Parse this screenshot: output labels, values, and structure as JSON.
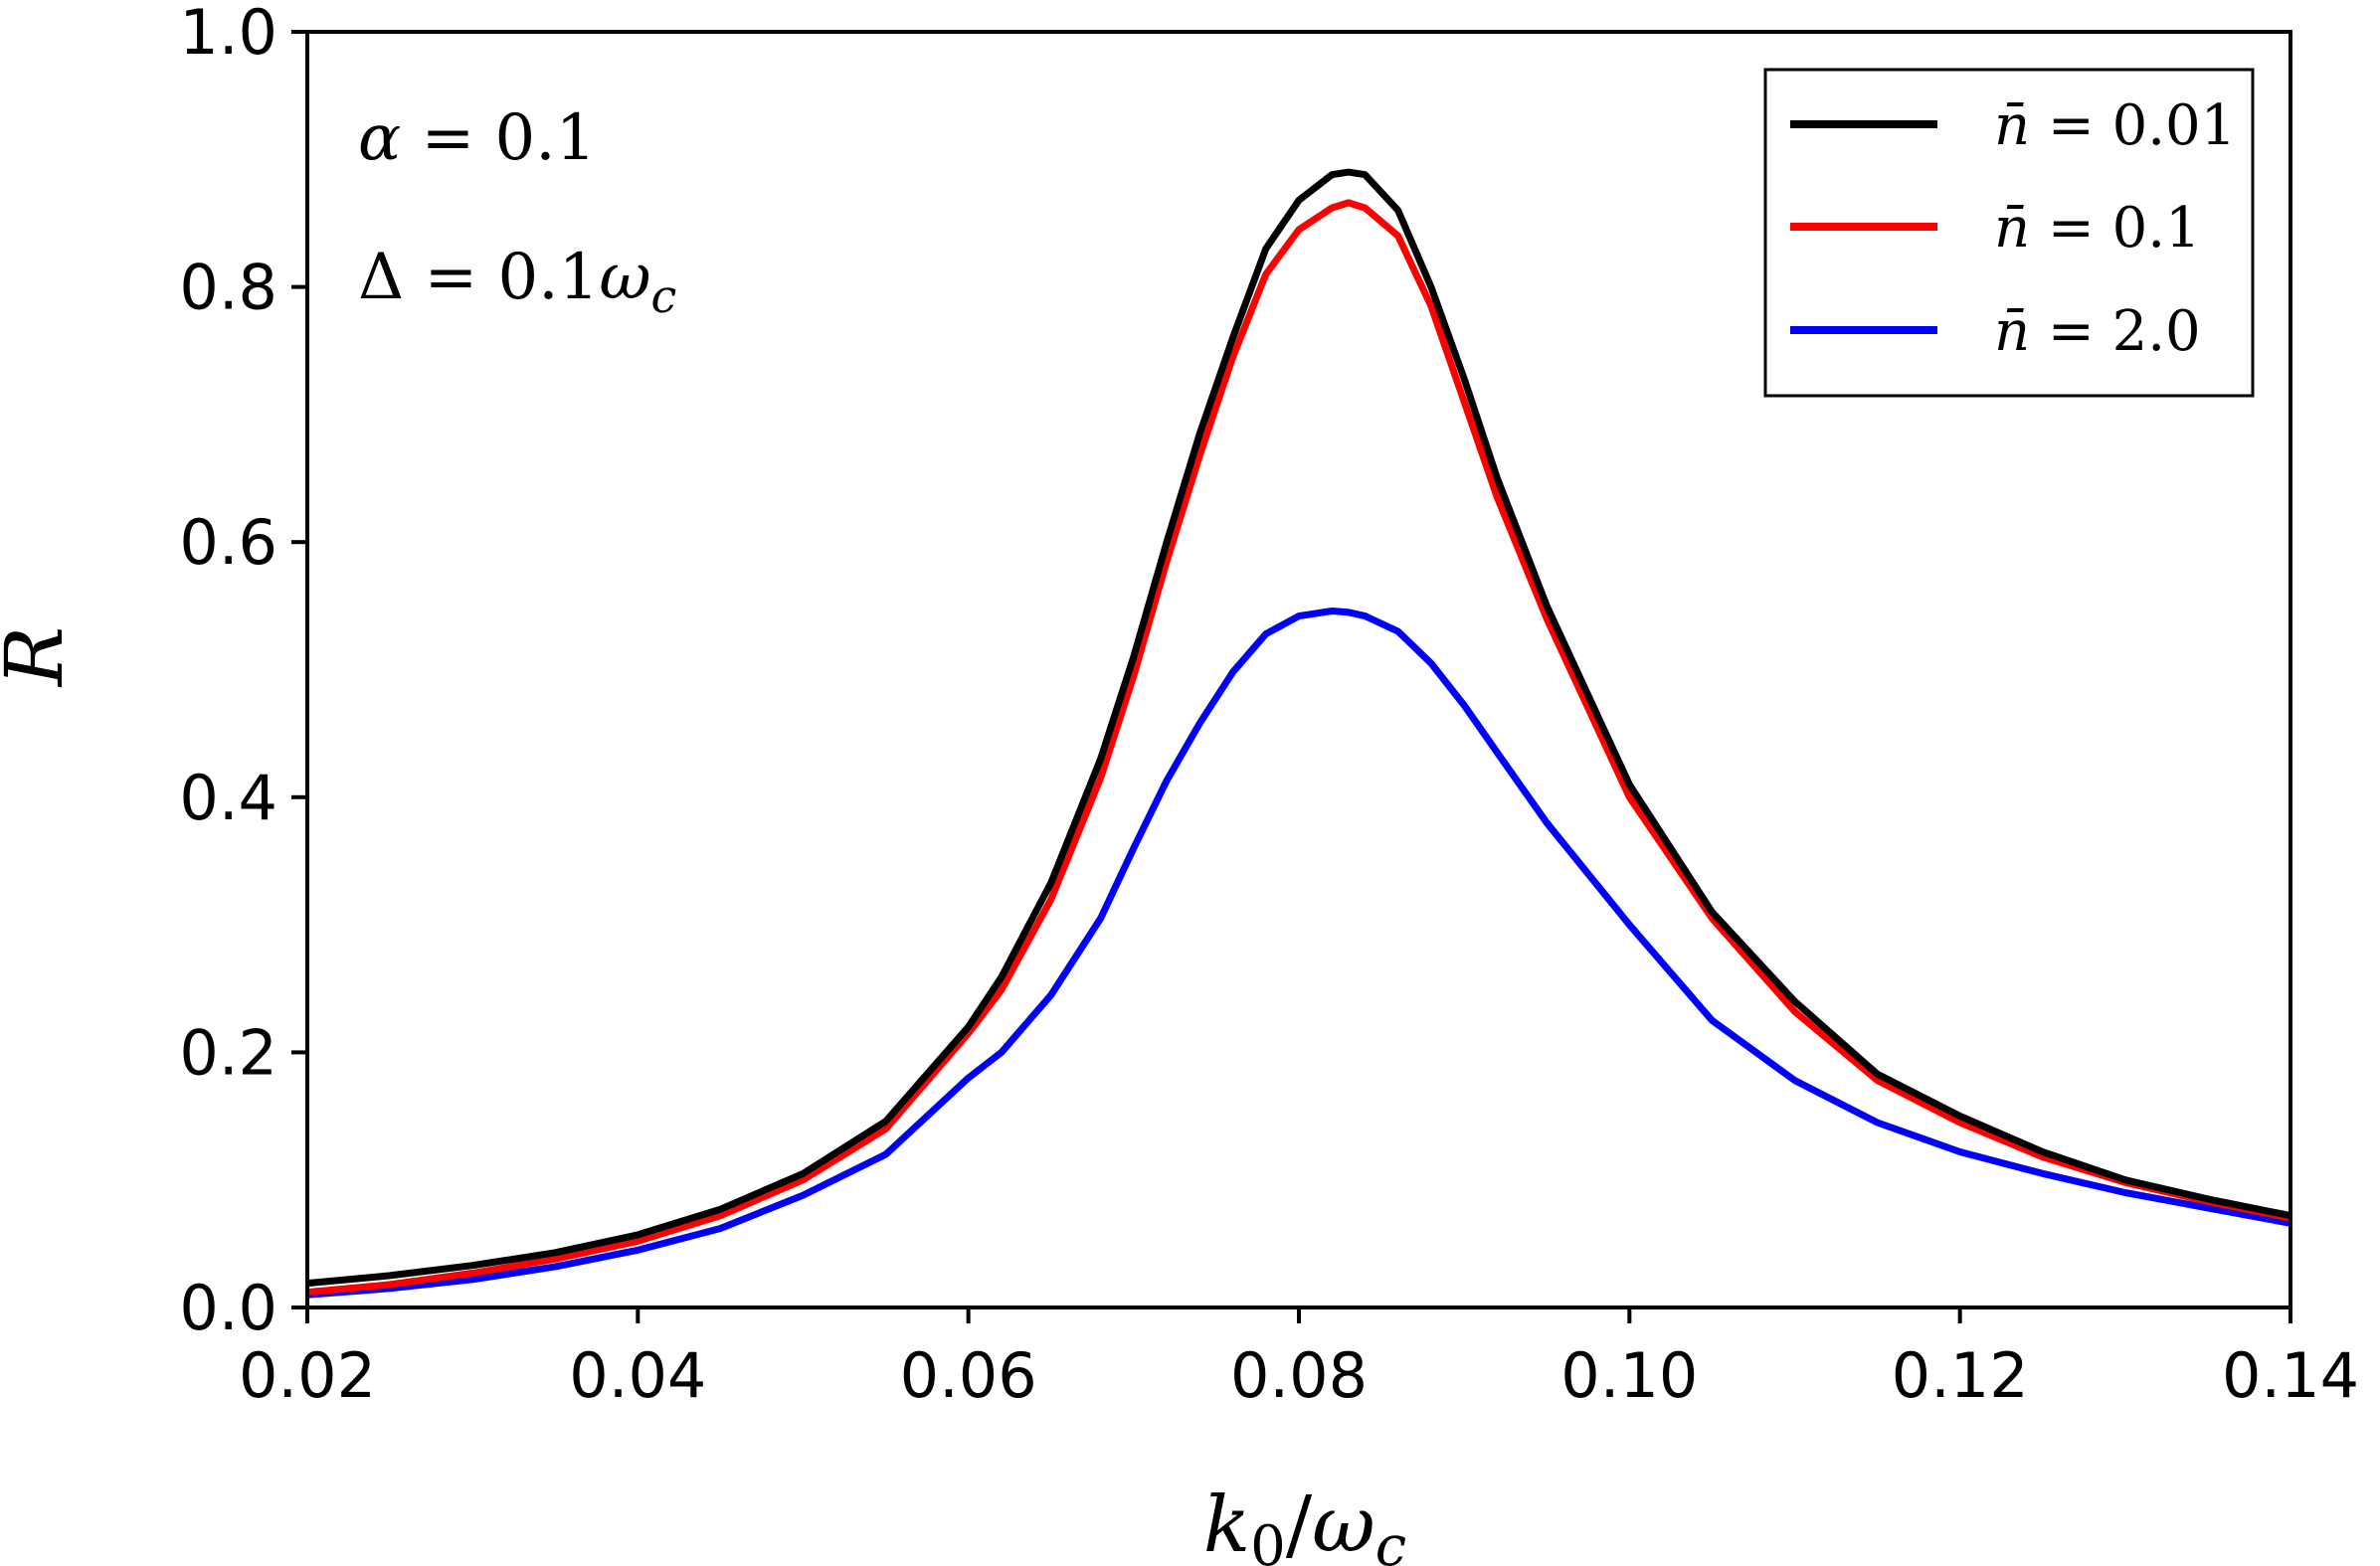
{
  "chart_data": {
    "type": "line",
    "title": "",
    "xlabel": "k0/ωc",
    "ylabel": "R",
    "xlim": [
      0.02,
      0.14
    ],
    "ylim": [
      0.0,
      1.0
    ],
    "xticks": [
      0.02,
      0.04,
      0.06,
      0.08,
      0.1,
      0.12,
      0.14
    ],
    "xtick_labels": [
      "0.02",
      "0.04",
      "0.06",
      "0.08",
      "0.10",
      "0.12",
      "0.14"
    ],
    "yticks": [
      0.0,
      0.2,
      0.4,
      0.6,
      0.8,
      1.0
    ],
    "ytick_labels": [
      "0.0",
      "0.2",
      "0.4",
      "0.6",
      "0.8",
      "1.0"
    ],
    "grid": false,
    "legend_position": "top-right",
    "annotations": [
      "α = 0.1",
      "Δ = 0.1ωc"
    ],
    "x": [
      0.02,
      0.025,
      0.03,
      0.035,
      0.04,
      0.045,
      0.05,
      0.055,
      0.06,
      0.062,
      0.065,
      0.068,
      0.07,
      0.072,
      0.074,
      0.076,
      0.078,
      0.08,
      0.082,
      0.083,
      0.084,
      0.086,
      0.088,
      0.09,
      0.092,
      0.095,
      0.1,
      0.105,
      0.11,
      0.115,
      0.12,
      0.125,
      0.13,
      0.135,
      0.14
    ],
    "series": [
      {
        "name": "n̄ = 0.01",
        "color": "#000000",
        "values": [
          0.019,
          0.025,
          0.033,
          0.043,
          0.057,
          0.077,
          0.105,
          0.146,
          0.22,
          0.259,
          0.333,
          0.43,
          0.51,
          0.6,
          0.685,
          0.76,
          0.83,
          0.868,
          0.888,
          0.89,
          0.888,
          0.86,
          0.8,
          0.728,
          0.65,
          0.55,
          0.41,
          0.31,
          0.24,
          0.183,
          0.15,
          0.122,
          0.1,
          0.085,
          0.072
        ]
      },
      {
        "name": "n̄ = 0.1",
        "color": "#ff0000",
        "values": [
          0.012,
          0.018,
          0.027,
          0.038,
          0.052,
          0.072,
          0.1,
          0.14,
          0.215,
          0.249,
          0.32,
          0.415,
          0.495,
          0.585,
          0.668,
          0.745,
          0.81,
          0.845,
          0.862,
          0.866,
          0.862,
          0.84,
          0.785,
          0.71,
          0.635,
          0.54,
          0.4,
          0.305,
          0.232,
          0.178,
          0.145,
          0.118,
          0.098,
          0.083,
          0.07
        ]
      },
      {
        "name": "n̄ = 2.0",
        "color": "#0000ff",
        "values": [
          0.01,
          0.015,
          0.022,
          0.032,
          0.045,
          0.062,
          0.088,
          0.12,
          0.18,
          0.2,
          0.245,
          0.305,
          0.36,
          0.413,
          0.458,
          0.498,
          0.528,
          0.542,
          0.546,
          0.545,
          0.542,
          0.53,
          0.505,
          0.472,
          0.435,
          0.38,
          0.3,
          0.225,
          0.178,
          0.145,
          0.122,
          0.105,
          0.09,
          0.078,
          0.066
        ]
      }
    ]
  }
}
